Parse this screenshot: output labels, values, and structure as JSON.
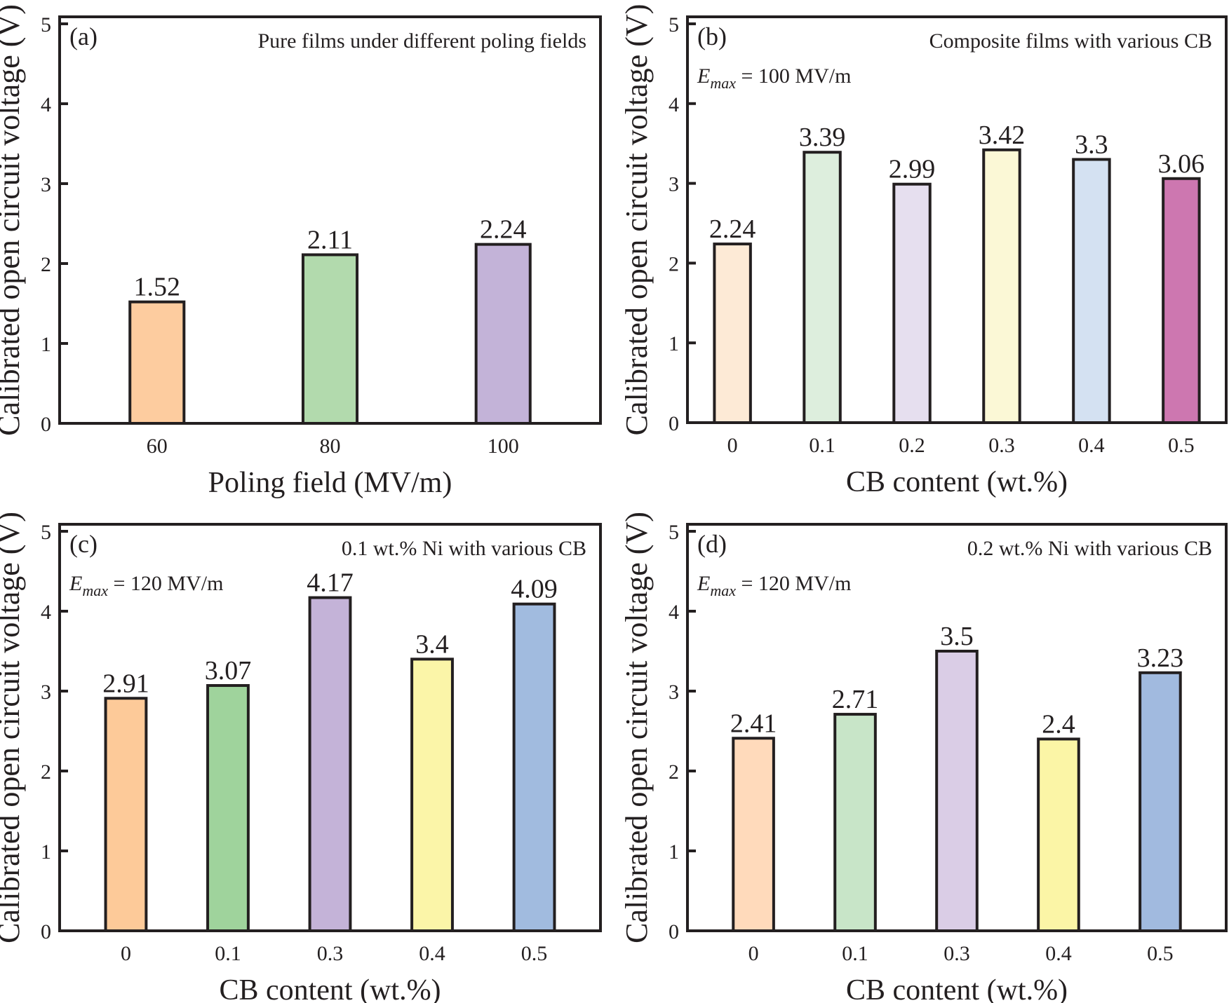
{
  "chart_data": [
    {
      "type": "bar",
      "panel": "(a)",
      "title": "Pure films under different poling fields",
      "annotation": null,
      "xlabel": "Poling field (MV/m)",
      "ylabel": "Calibrated open circuit voltage (V)",
      "ylim": [
        0,
        5
      ],
      "yticks": [
        "0",
        "1",
        "2",
        "3",
        "4",
        "5"
      ],
      "categories": [
        "60",
        "80",
        "100"
      ],
      "values": [
        1.52,
        2.11,
        2.24
      ],
      "value_labels": [
        "1.52",
        "2.11",
        "2.24"
      ],
      "colors": [
        "#FDCC9F",
        "#B2DAAD",
        "#C3B3D8"
      ],
      "grid": false,
      "legend": null
    },
    {
      "type": "bar",
      "panel": "(b)",
      "title": "Composite films with various CB",
      "annotation": {
        "symbol": "E",
        "sub": "max",
        "text": " = 100 MV/m"
      },
      "xlabel": "CB content (wt.%)",
      "ylabel": "Calibrated open circuit voltage (V)",
      "ylim": [
        0,
        5
      ],
      "yticks": [
        "0",
        "1",
        "2",
        "3",
        "4",
        "5"
      ],
      "categories": [
        "0",
        "0.1",
        "0.2",
        "0.3",
        "0.4",
        "0.5"
      ],
      "values": [
        2.24,
        3.39,
        2.99,
        3.42,
        3.3,
        3.06
      ],
      "value_labels": [
        "2.24",
        "3.39",
        "2.99",
        "3.42",
        "3.3",
        "3.06"
      ],
      "colors": [
        "#FDEAD6",
        "#DDEEDD",
        "#E6DFEF",
        "#FBF8D6",
        "#D4E1F2",
        "#CD77B0"
      ],
      "grid": false,
      "legend": null
    },
    {
      "type": "bar",
      "panel": "(c)",
      "title": "0.1 wt.% Ni with various CB",
      "annotation": {
        "symbol": "E",
        "sub": "max",
        "text": " = 120 MV/m"
      },
      "xlabel": "CB content (wt.%)",
      "ylabel": "Calibrated open circuit voltage (V)",
      "ylim": [
        0,
        5
      ],
      "yticks": [
        "0",
        "1",
        "2",
        "3",
        "4",
        "5"
      ],
      "categories": [
        "0",
        "0.1",
        "0.3",
        "0.4",
        "0.5"
      ],
      "values": [
        2.91,
        3.07,
        4.17,
        3.4,
        4.09
      ],
      "value_labels": [
        "2.91",
        "3.07",
        "4.17",
        "3.4",
        "4.09"
      ],
      "colors": [
        "#FDCA99",
        "#9FD39C",
        "#C4B3D8",
        "#FBF5A8",
        "#A1BBDF"
      ],
      "grid": false,
      "legend": null
    },
    {
      "type": "bar",
      "panel": "(d)",
      "title": "0.2 wt.% Ni with various CB",
      "annotation": {
        "symbol": "E",
        "sub": "max",
        "text": " = 120 MV/m"
      },
      "xlabel": "CB content (wt.%)",
      "ylabel": "Calibrated open circuit voltage (V)",
      "ylim": [
        0,
        5
      ],
      "yticks": [
        "0",
        "1",
        "2",
        "3",
        "4",
        "5"
      ],
      "categories": [
        "0",
        "0.1",
        "0.3",
        "0.4",
        "0.5"
      ],
      "values": [
        2.41,
        2.71,
        3.5,
        2.4,
        3.23
      ],
      "value_labels": [
        "2.41",
        "2.71",
        "3.5",
        "2.4",
        "3.23"
      ],
      "colors": [
        "#FFDABB",
        "#C8E5C8",
        "#DACDE6",
        "#FBF5A6",
        "#A1BADF"
      ],
      "grid": false,
      "legend": null
    }
  ]
}
